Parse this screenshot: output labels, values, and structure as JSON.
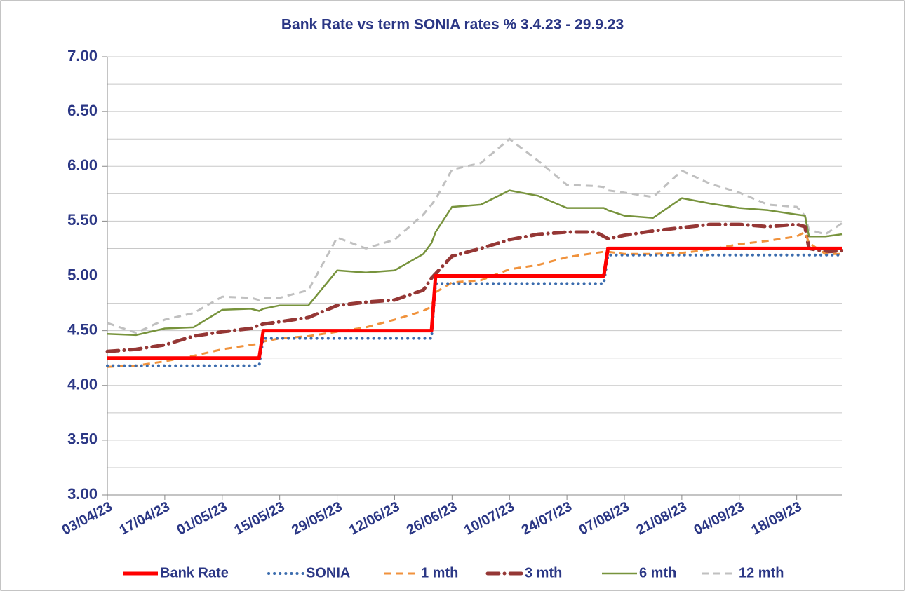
{
  "chart_data": {
    "type": "line",
    "title": "Bank Rate vs term SONIA rates % 3.4.23 - 29.9.23",
    "x": [
      "03/04/23",
      "10/04/23",
      "17/04/23",
      "24/04/23",
      "01/05/23",
      "08/05/23",
      "10/05/23",
      "11/05/23",
      "15/05/23",
      "22/05/23",
      "29/05/23",
      "05/06/23",
      "12/06/23",
      "19/06/23",
      "21/06/23",
      "22/06/23",
      "26/06/23",
      "03/07/23",
      "10/07/23",
      "17/07/23",
      "24/07/23",
      "31/07/23",
      "02/08/23",
      "03/08/23",
      "07/08/23",
      "14/08/23",
      "21/08/23",
      "28/08/23",
      "04/09/23",
      "11/09/23",
      "18/09/23",
      "20/09/23",
      "21/09/23",
      "25/09/23",
      "29/09/23"
    ],
    "series": [
      {
        "name": "Bank Rate",
        "color": "#ff0000",
        "line_style": "solid",
        "values": [
          4.25,
          4.25,
          4.25,
          4.25,
          4.25,
          4.25,
          4.25,
          4.5,
          4.5,
          4.5,
          4.5,
          4.5,
          4.5,
          4.5,
          4.5,
          5.0,
          5.0,
          5.0,
          5.0,
          5.0,
          5.0,
          5.0,
          5.0,
          5.25,
          5.25,
          5.25,
          5.25,
          5.25,
          5.25,
          5.25,
          5.25,
          5.25,
          5.25,
          5.25,
          5.25
        ]
      },
      {
        "name": "SONIA",
        "color": "#3b6cae",
        "line_style": "dotted",
        "values": [
          4.18,
          4.18,
          4.18,
          4.18,
          4.18,
          4.18,
          4.18,
          4.43,
          4.43,
          4.43,
          4.43,
          4.43,
          4.43,
          4.43,
          4.43,
          4.93,
          4.93,
          4.93,
          4.93,
          4.93,
          4.93,
          4.93,
          4.93,
          5.19,
          5.19,
          5.19,
          5.19,
          5.19,
          5.19,
          5.19,
          5.19,
          5.19,
          5.19,
          5.19,
          5.19
        ]
      },
      {
        "name": "1 mth",
        "color": "#f0923c",
        "line_style": "dashed",
        "values": [
          4.17,
          4.18,
          4.22,
          4.27,
          4.33,
          4.37,
          4.38,
          4.4,
          4.43,
          4.45,
          4.49,
          4.53,
          4.6,
          4.68,
          4.72,
          4.85,
          4.94,
          4.96,
          5.06,
          5.1,
          5.17,
          5.21,
          5.22,
          5.22,
          5.2,
          5.2,
          5.21,
          5.24,
          5.29,
          5.32,
          5.36,
          5.4,
          5.3,
          5.2,
          5.2
        ]
      },
      {
        "name": "3 mth",
        "color": "#953735",
        "line_style": "dash-dot",
        "values": [
          4.31,
          4.33,
          4.37,
          4.45,
          4.49,
          4.52,
          4.55,
          4.56,
          4.58,
          4.62,
          4.73,
          4.76,
          4.78,
          4.87,
          4.98,
          5.02,
          5.18,
          5.25,
          5.33,
          5.38,
          5.4,
          5.4,
          5.36,
          5.34,
          5.37,
          5.41,
          5.44,
          5.47,
          5.47,
          5.45,
          5.47,
          5.45,
          5.25,
          5.22,
          5.23
        ]
      },
      {
        "name": "6 mth",
        "color": "#77933c",
        "line_style": "solid-thin",
        "values": [
          4.47,
          4.46,
          4.52,
          4.53,
          4.69,
          4.7,
          4.68,
          4.7,
          4.73,
          4.73,
          5.05,
          5.03,
          5.05,
          5.2,
          5.3,
          5.4,
          5.63,
          5.65,
          5.78,
          5.73,
          5.62,
          5.62,
          5.62,
          5.6,
          5.55,
          5.53,
          5.71,
          5.66,
          5.62,
          5.6,
          5.56,
          5.55,
          5.36,
          5.36,
          5.38
        ]
      },
      {
        "name": "12 mth",
        "color": "#c0c0c0",
        "line_style": "dashed",
        "values": [
          4.57,
          4.48,
          4.6,
          4.66,
          4.81,
          4.8,
          4.78,
          4.8,
          4.8,
          4.87,
          5.35,
          5.25,
          5.33,
          5.56,
          5.65,
          5.7,
          5.97,
          6.03,
          6.25,
          6.05,
          5.83,
          5.82,
          5.81,
          5.78,
          5.76,
          5.72,
          5.96,
          5.84,
          5.76,
          5.65,
          5.63,
          5.55,
          5.42,
          5.38,
          5.48
        ]
      }
    ],
    "xlim": [
      "03/04/23",
      "29/09/23"
    ],
    "xticks": [
      "03/04/23",
      "17/04/23",
      "01/05/23",
      "15/05/23",
      "29/05/23",
      "12/06/23",
      "26/06/23",
      "10/07/23",
      "24/07/23",
      "07/08/23",
      "21/08/23",
      "04/09/23",
      "18/09/23"
    ],
    "ylim": [
      3,
      7
    ],
    "yticks": [
      {
        "value": 3,
        "label": "3.00"
      },
      {
        "value": 3.5,
        "label": "3.50"
      },
      {
        "value": 4,
        "label": "4.00"
      },
      {
        "value": 4.5,
        "label": "4.50"
      },
      {
        "value": 5,
        "label": "5.00"
      },
      {
        "value": 5.5,
        "label": "5.50"
      },
      {
        "value": 6,
        "label": "6.00"
      },
      {
        "value": 6.5,
        "label": "6.50"
      },
      {
        "value": 7,
        "label": "7.00"
      }
    ],
    "grid": true,
    "legend": "bottom"
  }
}
